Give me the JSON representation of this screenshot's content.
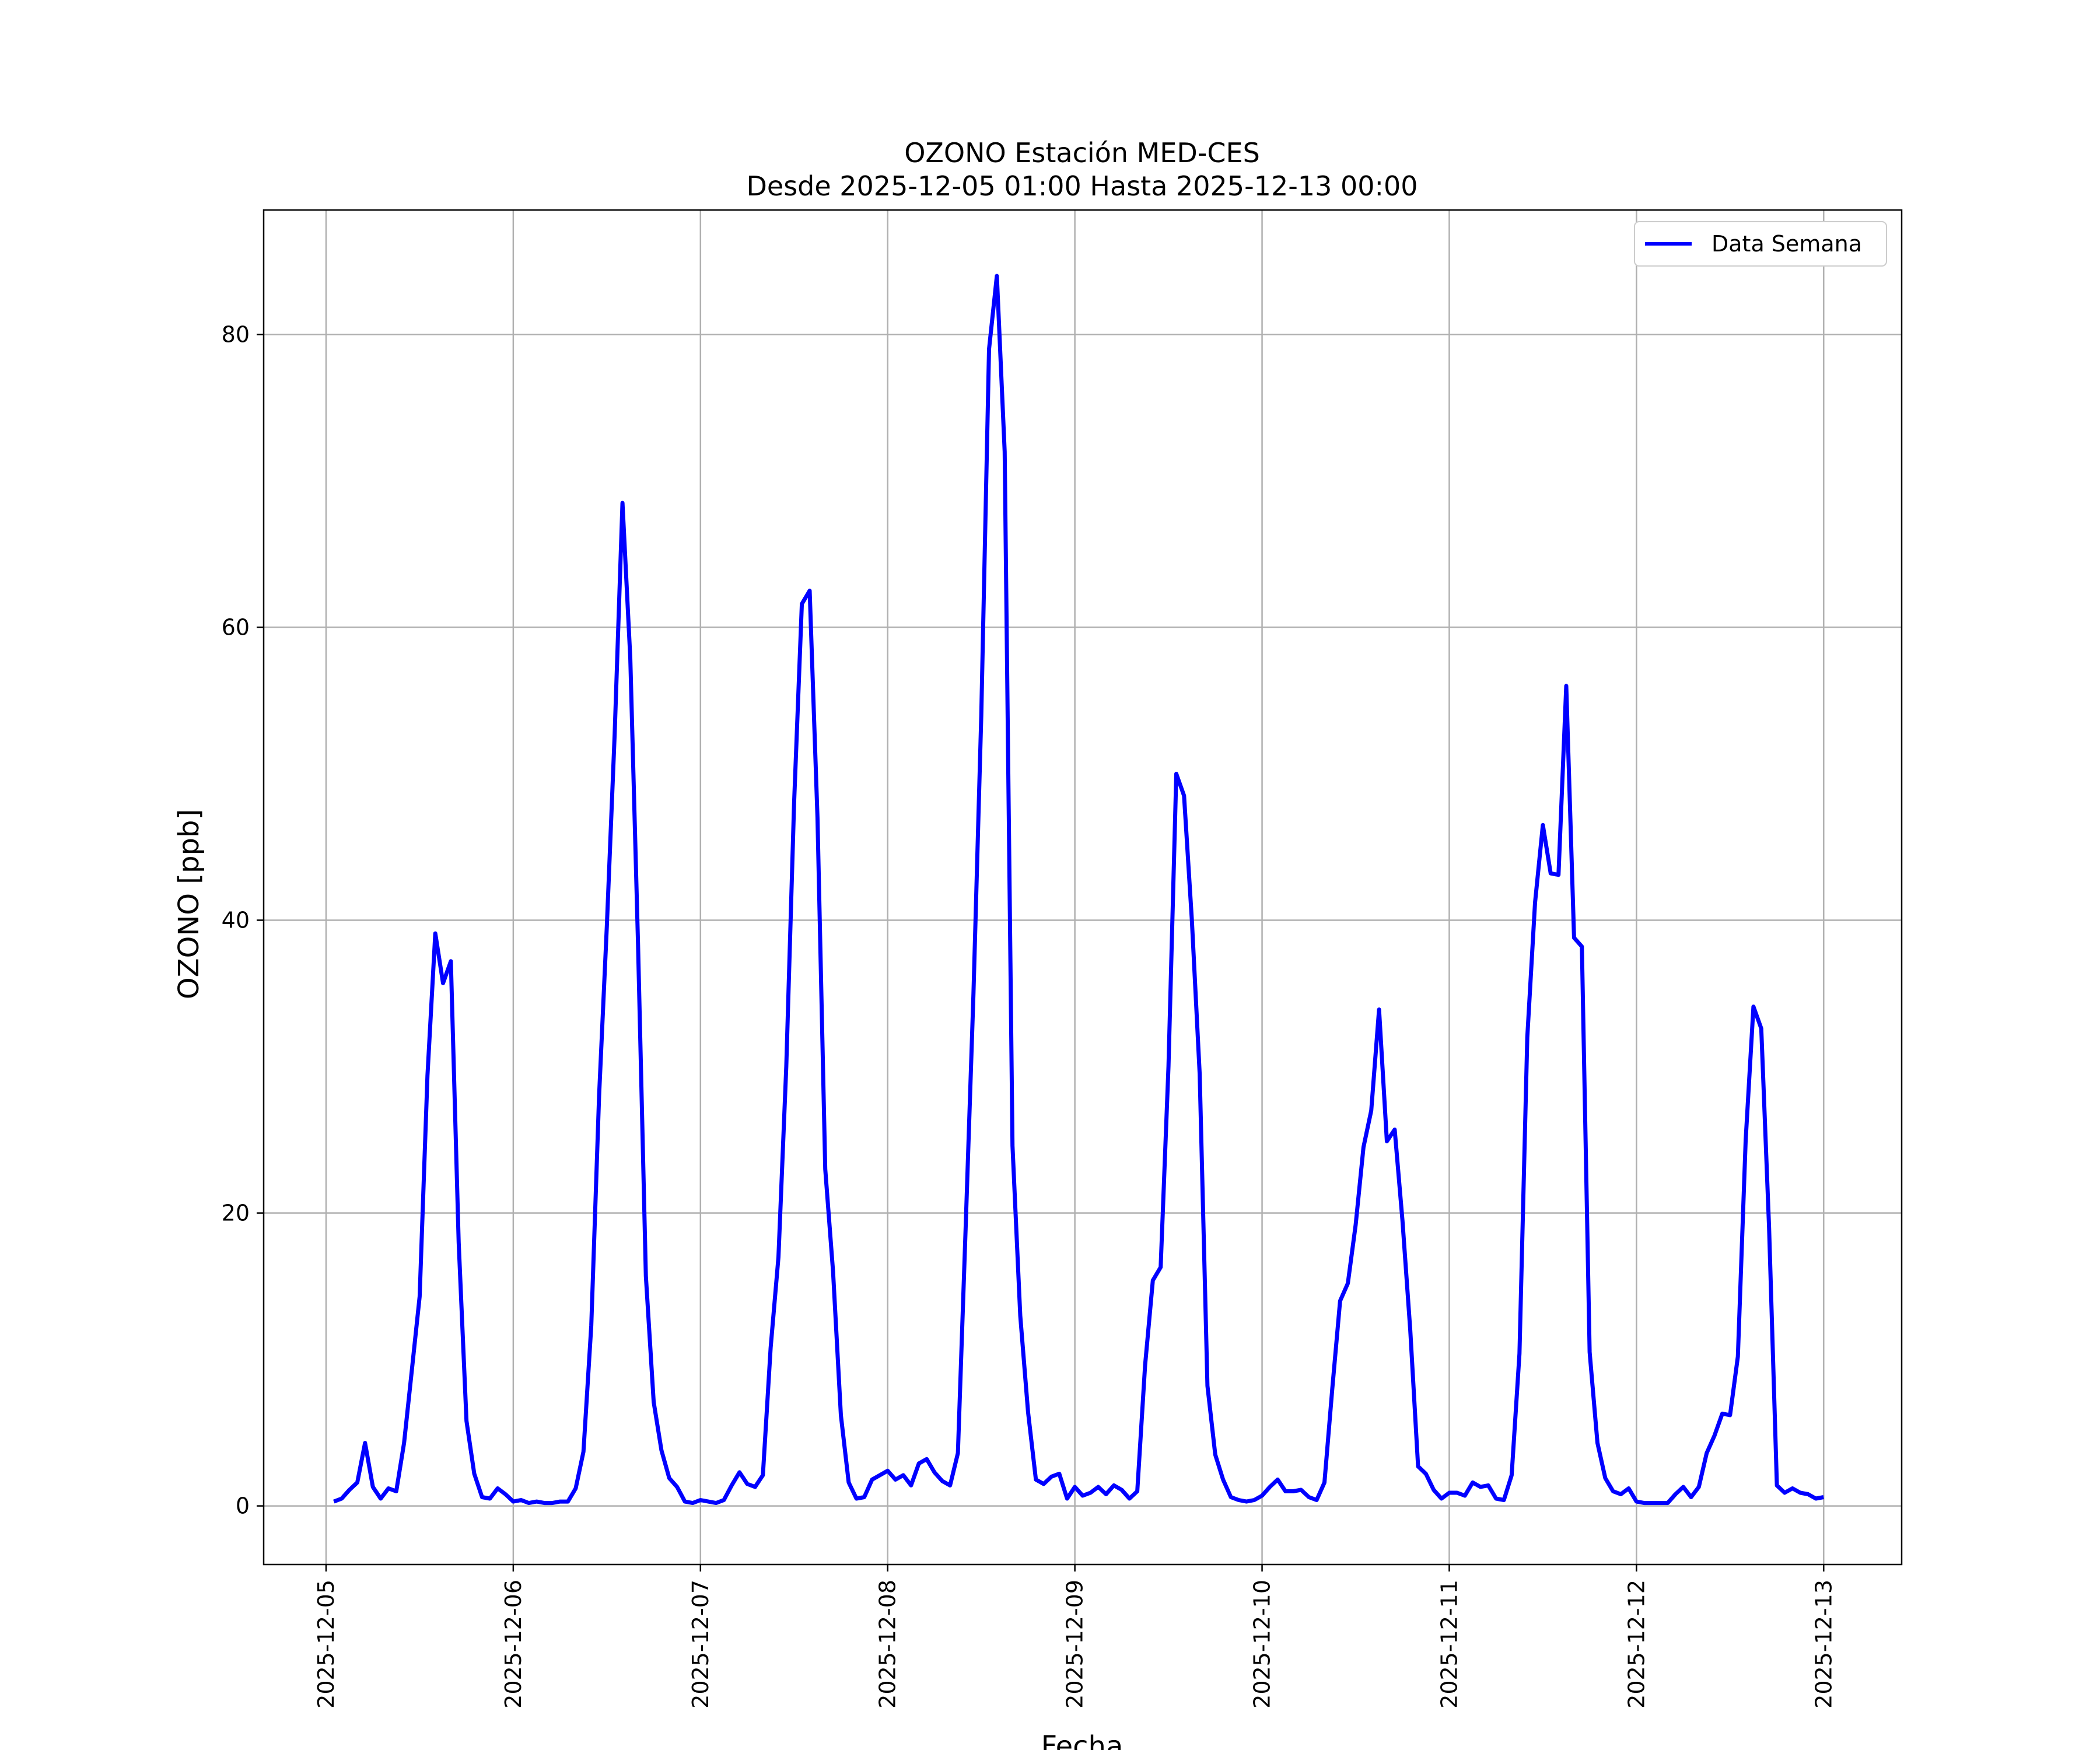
{
  "chart_data": {
    "type": "line",
    "title": "OZONO Estación MED-CES",
    "subtitle": "Desde 2025-12-05 01:00 Hasta 2025-12-13 00:00",
    "xlabel": "Fecha",
    "ylabel": "OZONO [ppb]",
    "xlim": [
      "2025-12-04 16:00",
      "2025-12-13 10:00"
    ],
    "ylim": [
      -4,
      88.5
    ],
    "x_ticks": [
      "2025-12-05",
      "2025-12-06",
      "2025-12-07",
      "2025-12-08",
      "2025-12-09",
      "2025-12-10",
      "2025-12-11",
      "2025-12-12",
      "2025-12-13"
    ],
    "y_ticks": [
      0,
      20,
      40,
      60,
      80
    ],
    "grid": true,
    "legend_position": "top-right",
    "series_color": "#0000ff",
    "series": [
      {
        "name": "Data Semana",
        "start": "2025-12-05 01:00",
        "step_hours": 1,
        "values": [
          0.3,
          0.5,
          1.1,
          1.6,
          4.3,
          1.3,
          0.5,
          1.2,
          1.0,
          4.3,
          9.3,
          14.3,
          29.4,
          39.1,
          35.7,
          37.2,
          18.0,
          5.8,
          2.2,
          0.6,
          0.5,
          1.2,
          0.8,
          0.3,
          0.4,
          0.2,
          0.3,
          0.2,
          0.2,
          0.3,
          0.3,
          1.2,
          3.7,
          12.3,
          28.0,
          39.6,
          52.7,
          68.5,
          57.9,
          38.3,
          15.7,
          7.1,
          3.8,
          1.9,
          1.3,
          0.3,
          0.2,
          0.4,
          0.3,
          0.2,
          0.4,
          1.4,
          2.3,
          1.5,
          1.3,
          2.1,
          10.8,
          17.0,
          30.0,
          48.0,
          61.6,
          62.5,
          47.0,
          23.0,
          16.0,
          6.2,
          1.6,
          0.5,
          0.6,
          1.8,
          2.1,
          2.4,
          1.8,
          2.1,
          1.4,
          2.9,
          3.2,
          2.3,
          1.7,
          1.4,
          3.6,
          19.0,
          35.0,
          54.0,
          79.0,
          84.0,
          72.0,
          24.6,
          13.0,
          6.4,
          1.8,
          1.5,
          2.0,
          2.2,
          0.5,
          1.3,
          0.7,
          0.9,
          1.3,
          0.8,
          1.4,
          1.1,
          0.5,
          1.0,
          9.6,
          15.4,
          16.3,
          30.0,
          50.0,
          48.5,
          40.0,
          29.5,
          8.2,
          3.5,
          1.8,
          0.6,
          0.4,
          0.3,
          0.4,
          0.7,
          1.3,
          1.8,
          1.0,
          1.0,
          1.1,
          0.6,
          0.4,
          1.6,
          8.0,
          14.0,
          15.2,
          19.2,
          24.5,
          27.0,
          33.9,
          24.9,
          25.7,
          19.5,
          12.0,
          2.7,
          2.2,
          1.1,
          0.5,
          0.9,
          0.9,
          0.7,
          1.6,
          1.3,
          1.4,
          0.5,
          0.4,
          2.1,
          10.4,
          32.0,
          41.2,
          46.5,
          43.2,
          43.1,
          56.0,
          38.8,
          38.2,
          10.5,
          4.3,
          1.9,
          1.0,
          0.8,
          1.2,
          0.3,
          0.2,
          0.2,
          0.2,
          0.2,
          0.8,
          1.3,
          0.6,
          1.3,
          3.6,
          4.8,
          6.3,
          6.2,
          10.2,
          25.0,
          34.1,
          32.6,
          19.0,
          1.4,
          0.9,
          1.2,
          0.9,
          0.8,
          0.5,
          0.6
        ]
      }
    ]
  }
}
